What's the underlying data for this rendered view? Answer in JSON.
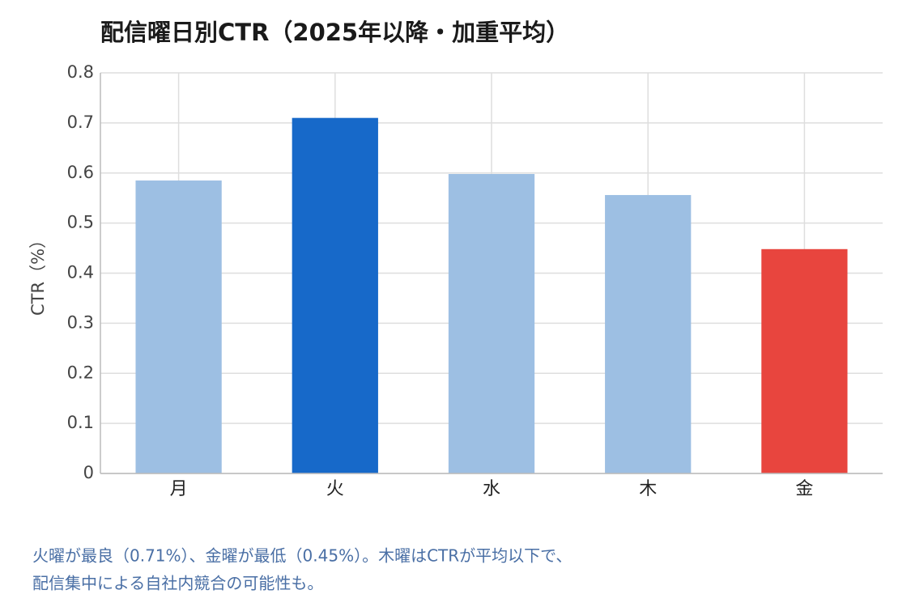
{
  "chart_data": {
    "type": "bar",
    "title": "配信曜日別CTR（2025年以降・加重平均）",
    "y_label": "CTR（%）",
    "categories": [
      "月",
      "火",
      "水",
      "木",
      "金"
    ],
    "values": [
      0.585,
      0.71,
      0.598,
      0.556,
      0.448
    ],
    "colors": [
      "#9dbfe3",
      "#1769c9",
      "#9dbfe3",
      "#9dbfe3",
      "#e8453e"
    ],
    "ylim": [
      0,
      0.8
    ],
    "yticks": [
      0,
      0.1,
      0.2,
      0.3,
      0.4,
      0.5,
      0.6,
      0.7,
      0.8
    ],
    "grid": true,
    "notes": [
      "火曜が最良（0.71%）、金曜が最低（0.45%）。木曜はCTRが平均以下で、",
      "配信集中による自社内競合の可能性も。"
    ]
  }
}
